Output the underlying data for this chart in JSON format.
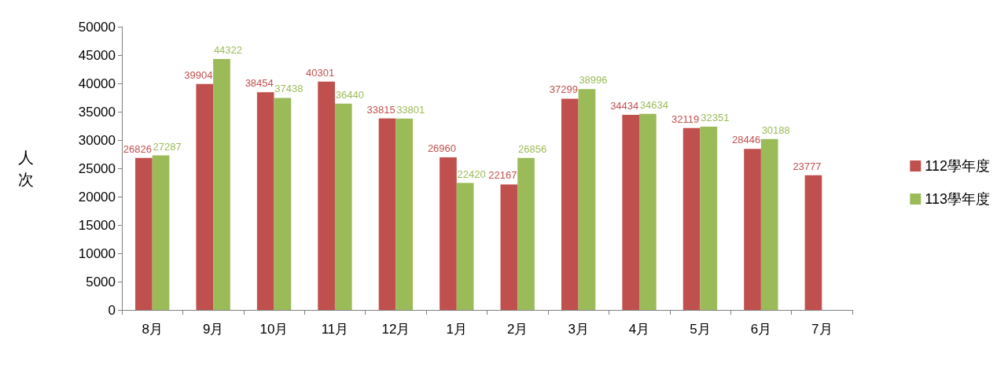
{
  "chart_data": {
    "type": "bar",
    "ylabel": "人次",
    "categories": [
      "8月",
      "9月",
      "10月",
      "11月",
      "12月",
      "1月",
      "2月",
      "3月",
      "4月",
      "5月",
      "6月",
      "7月"
    ],
    "series": [
      {
        "name": "112學年度",
        "color": "#c0504d",
        "values": [
          26826,
          39904,
          38454,
          40301,
          33815,
          26960,
          22167,
          37299,
          34434,
          32119,
          28446,
          23777
        ]
      },
      {
        "name": "113學年度",
        "color": "#9bbb59",
        "values": [
          27287,
          44322,
          37438,
          36440,
          33801,
          22420,
          26856,
          38996,
          34634,
          32351,
          30188,
          null
        ]
      }
    ],
    "ylim": [
      0,
      50000
    ],
    "yticks": [
      0,
      5000,
      10000,
      15000,
      20000,
      25000,
      30000,
      35000,
      40000,
      45000,
      50000
    ],
    "grid": false,
    "legend": "right",
    "data_labels": true
  }
}
